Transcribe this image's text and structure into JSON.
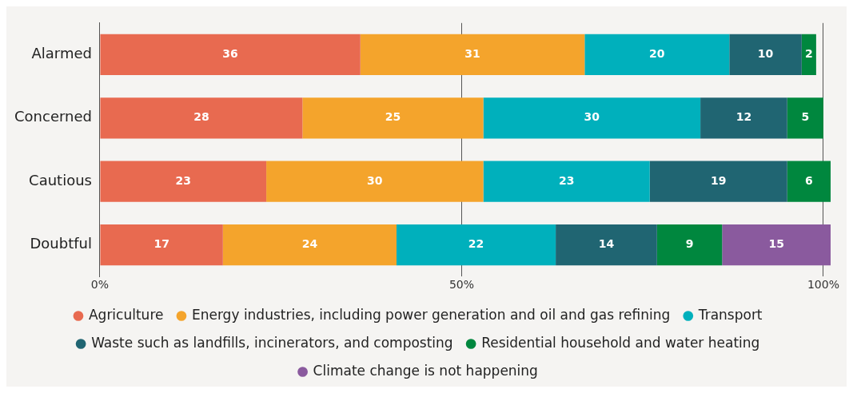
{
  "chart_data": {
    "type": "bar",
    "orientation": "horizontal",
    "stacked": true,
    "categories": [
      "Alarmed",
      "Concerned",
      "Cautious",
      "Doubtful"
    ],
    "series": [
      {
        "name": "Agriculture",
        "color": "#e86a50",
        "values": [
          36,
          28,
          23,
          17
        ]
      },
      {
        "name": "Energy industries, including power generation and oil and gas refining",
        "color": "#f4a42c",
        "values": [
          31,
          25,
          30,
          24
        ]
      },
      {
        "name": "Transport",
        "color": "#00b0bc",
        "values": [
          20,
          30,
          23,
          22
        ]
      },
      {
        "name": "Waste such as landfills, incinerators, and composting",
        "color": "#206572",
        "values": [
          10,
          12,
          19,
          14
        ]
      },
      {
        "name": "Residential household and water heating",
        "color": "#00873e",
        "values": [
          2,
          5,
          6,
          9
        ]
      },
      {
        "name": "Climate change is not happening",
        "color": "#8a5a9e",
        "values": [
          null,
          null,
          null,
          15
        ]
      }
    ],
    "xlim": [
      0,
      101
    ],
    "xticks": [
      {
        "value": 0,
        "label": "0%"
      },
      {
        "value": 50,
        "label": "50%"
      },
      {
        "value": 100,
        "label": "100%"
      }
    ],
    "grid": "x",
    "legend": "bottom",
    "marker": "circle",
    "data_labels": true
  }
}
